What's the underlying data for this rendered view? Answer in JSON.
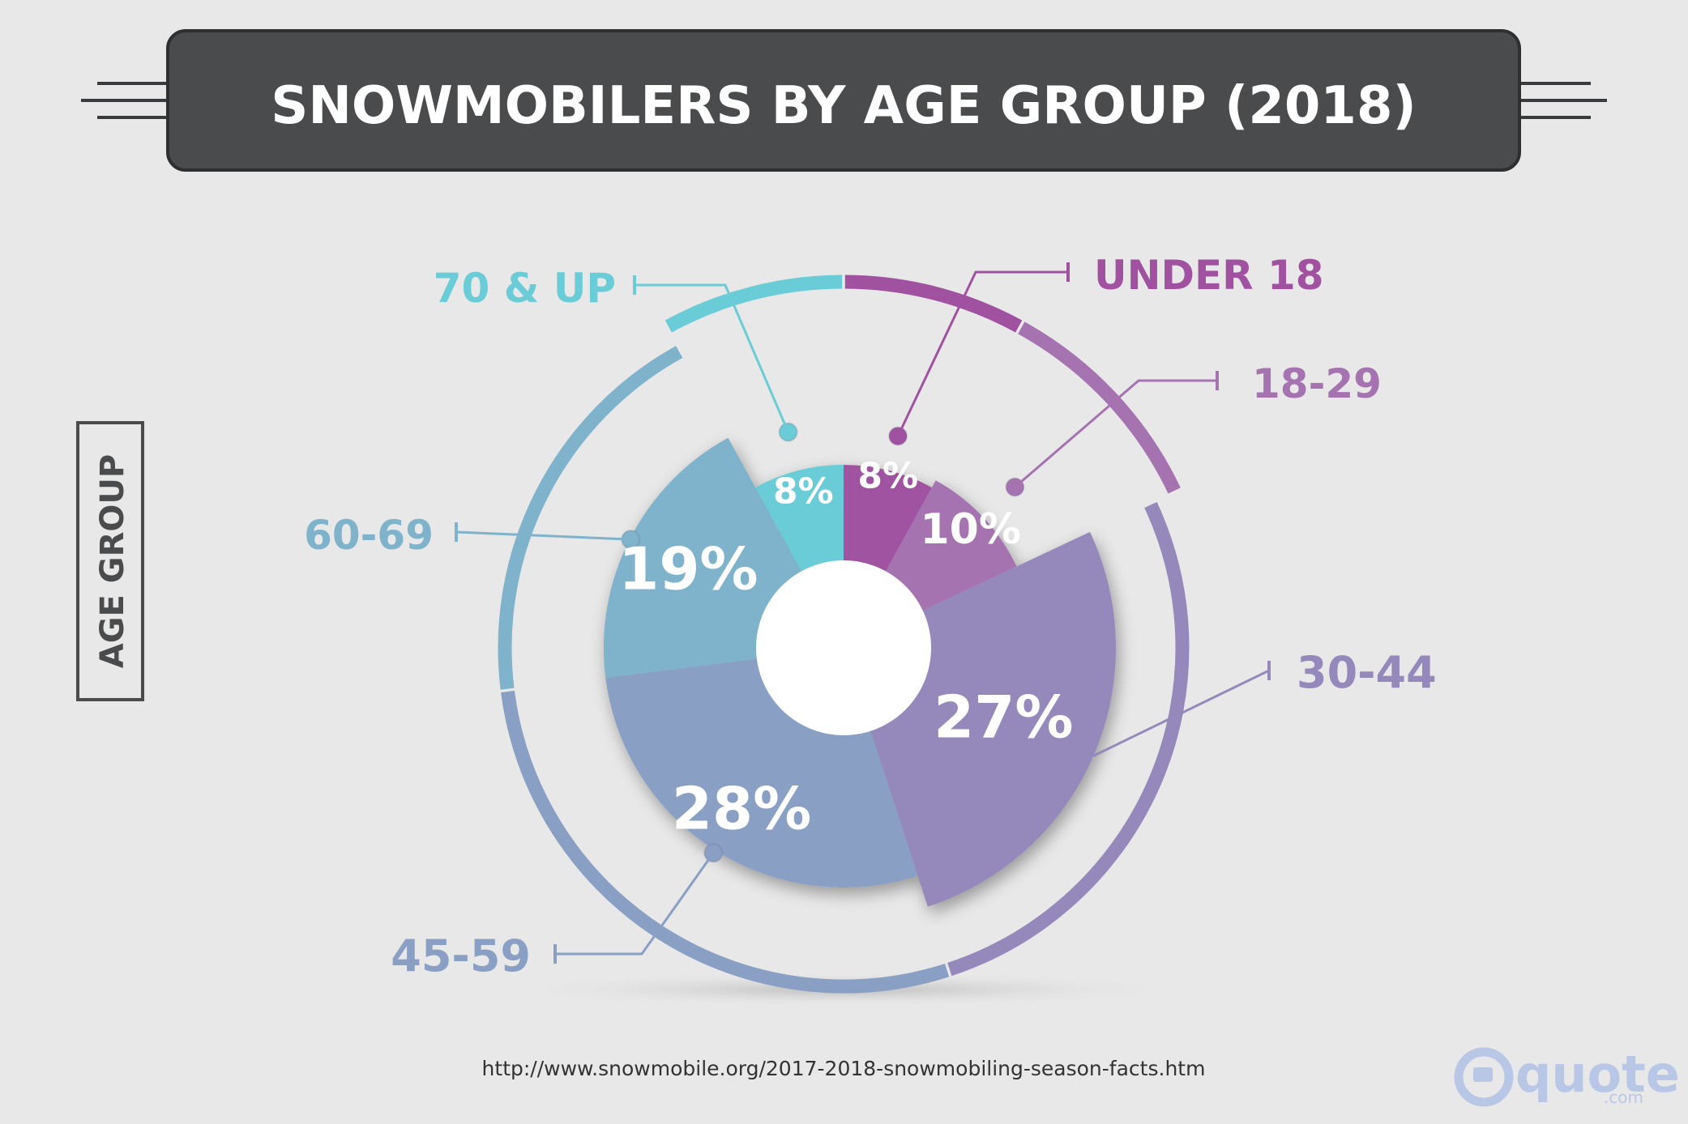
{
  "chart_data": {
    "type": "pie",
    "title": "SNOWMOBILERS BY AGE GROUP (2018)",
    "ylabel": "AGE GROUP",
    "categories": [
      "UNDER 18",
      "18-29",
      "30-44",
      "45-59",
      "60-69",
      "70 & UP"
    ],
    "values": [
      8,
      10,
      27,
      28,
      19,
      8
    ],
    "value_labels": [
      "8%",
      "10%",
      "27%",
      "28%",
      "19%",
      "8%"
    ],
    "colors": [
      "#a052a0",
      "#a673b1",
      "#9589bb",
      "#8a9fc4",
      "#7fb3cc",
      "#6accd6"
    ],
    "legend": "callout labels"
  },
  "source": "http://www.snowmobile.org/2017-2018-snowmobiling-season-facts.htm",
  "logo": {
    "text": "quote",
    "suffix": ".com",
    "color": "#b9c7e6"
  }
}
